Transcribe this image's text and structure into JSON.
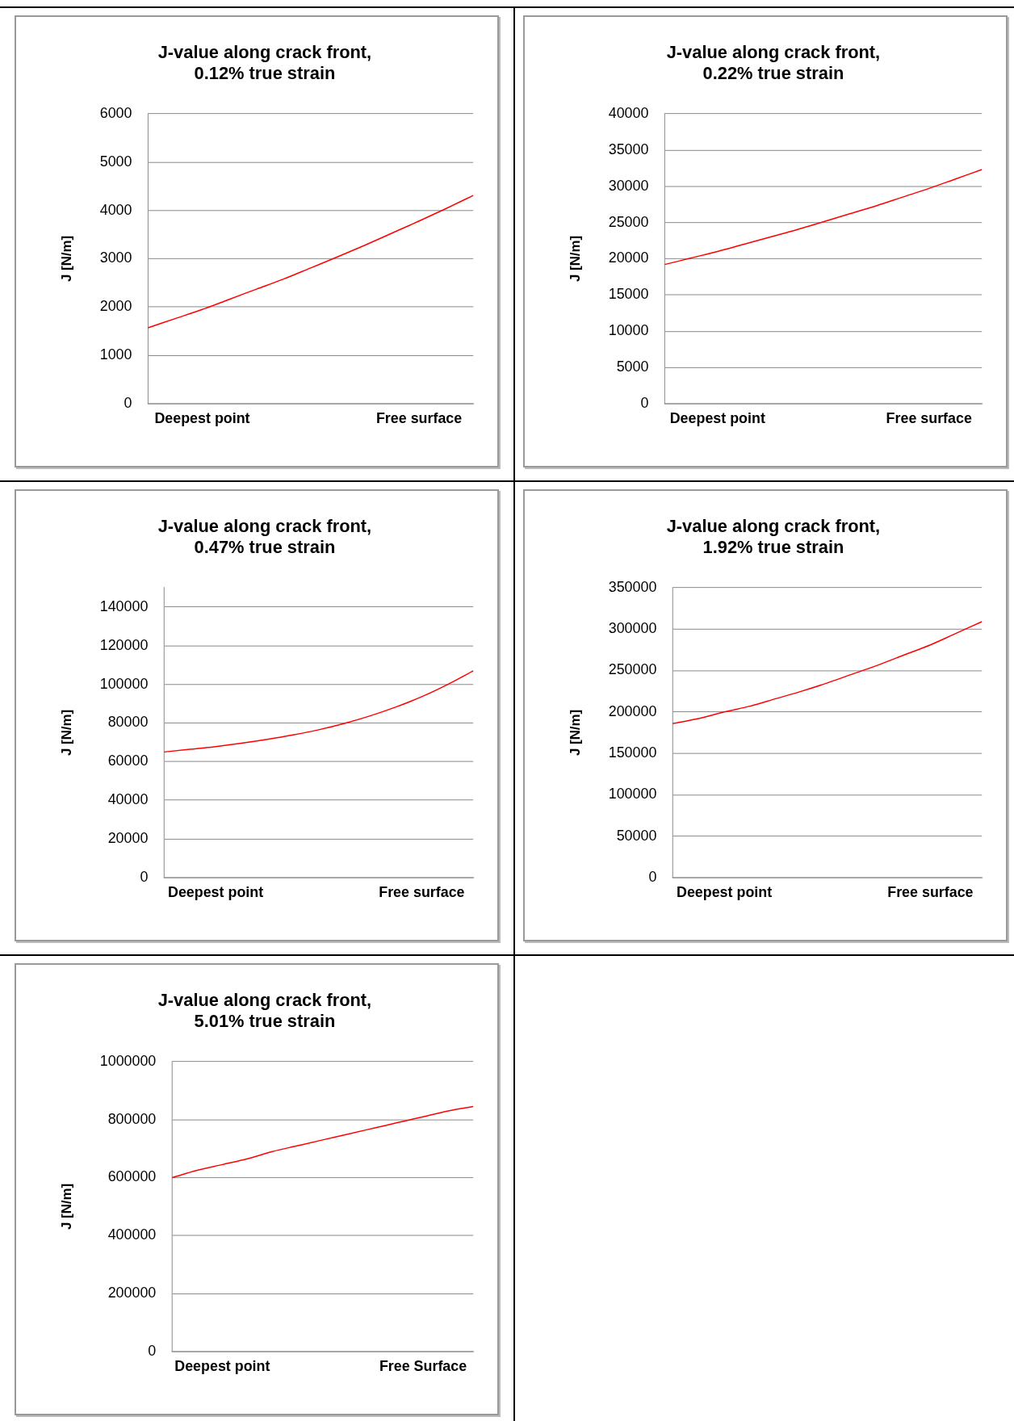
{
  "chart_data": [
    {
      "type": "line",
      "title": "J-value along crack front,\n0.12% true strain",
      "ylabel": "J [N/m]",
      "categories": [
        null,
        null,
        "Deepest point",
        null,
        null,
        null,
        null,
        null,
        null,
        null,
        "Free surface",
        null,
        null
      ],
      "series": [
        {
          "color": "#ff0000",
          "values": [
            1570,
            1760,
            1950,
            2160,
            2370,
            2580,
            2810,
            3040,
            3280,
            3530,
            3780,
            4040,
            4310
          ]
        }
      ],
      "ylim": [
        0,
        6000
      ],
      "yticks": [
        0,
        1000,
        2000,
        3000,
        4000,
        5000,
        6000
      ],
      "grid": "y",
      "legend": false,
      "marker": "none"
    },
    {
      "type": "line",
      "title": "J-value along crack front,\n0.22% true strain",
      "ylabel": "J [N/m]",
      "categories": [
        null,
        null,
        "Deepest point",
        null,
        null,
        null,
        null,
        null,
        null,
        null,
        "Free surface",
        null,
        null
      ],
      "series": [
        {
          "color": "#ff0000",
          "values": [
            19200,
            20100,
            21000,
            22000,
            23000,
            24000,
            25100,
            26200,
            27300,
            28500,
            29700,
            31000,
            32300
          ]
        }
      ],
      "ylim": [
        0,
        40000
      ],
      "yticks": [
        0,
        5000,
        10000,
        15000,
        20000,
        25000,
        30000,
        35000,
        40000
      ],
      "grid": "y",
      "legend": false,
      "marker": "none"
    },
    {
      "type": "line",
      "title": "J-value along crack front,\n0.47% true strain",
      "ylabel": "J [N/m]",
      "categories": [
        null,
        null,
        "Deepest point",
        null,
        null,
        null,
        null,
        null,
        null,
        null,
        "Free surface",
        null,
        null
      ],
      "series": [
        {
          "color": "#ff0000",
          "values": [
            65000,
            66400,
            67800,
            69500,
            71500,
            73800,
            76500,
            79800,
            83700,
            88300,
            93600,
            99900,
            107000
          ]
        }
      ],
      "ylim": [
        0,
        150000
      ],
      "yticks": [
        0,
        20000,
        40000,
        60000,
        80000,
        100000,
        120000,
        140000
      ],
      "grid": "y",
      "legend": false,
      "marker": "none"
    },
    {
      "type": "line",
      "title": "J-value along crack front,\n1.92% true strain",
      "ylabel": "J [N/m]",
      "categories": [
        null,
        null,
        "Deepest point",
        null,
        null,
        null,
        null,
        null,
        null,
        null,
        "Free surface",
        null,
        null
      ],
      "series": [
        {
          "color": "#ff0000",
          "values": [
            186000,
            192000,
            200000,
            207000,
            216000,
            225000,
            235000,
            246000,
            257000,
            269000,
            281000,
            295000,
            309000
          ]
        }
      ],
      "ylim": [
        0,
        350000
      ],
      "yticks": [
        0,
        50000,
        100000,
        150000,
        200000,
        250000,
        300000,
        350000
      ],
      "grid": "y",
      "legend": false,
      "marker": "none"
    },
    {
      "type": "line",
      "title": "J-value along crack front,\n5.01% true strain",
      "ylabel": "J [N/m]",
      "categories": [
        null,
        null,
        "Deepest point",
        null,
        null,
        null,
        null,
        null,
        null,
        null,
        "Free Surface",
        null,
        null
      ],
      "series": [
        {
          "color": "#ff0000",
          "values": [
            600000,
            625000,
            645000,
            665000,
            690000,
            710000,
            730000,
            750000,
            770000,
            790000,
            810000,
            830000,
            845000
          ]
        }
      ],
      "ylim": [
        0,
        1000000
      ],
      "yticks": [
        0,
        200000,
        400000,
        600000,
        800000,
        1000000
      ],
      "grid": "y",
      "legend": false,
      "marker": "none"
    }
  ]
}
